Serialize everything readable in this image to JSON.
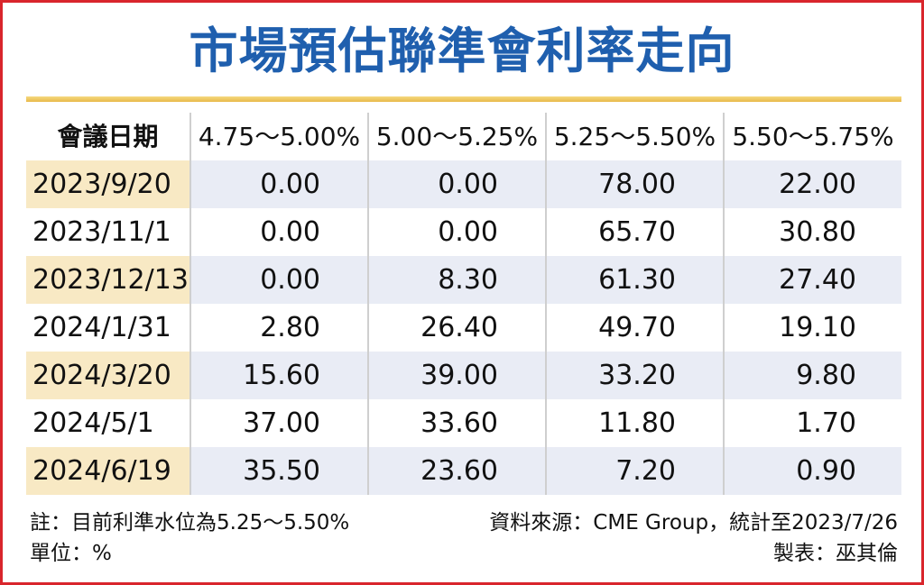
{
  "title": "市場預估聯準會利率走向",
  "table": {
    "columns": [
      "會議日期",
      "4.75～5.00%",
      "5.00～5.25%",
      "5.25～5.50%",
      "5.50～5.75%"
    ],
    "rows": [
      [
        "2023/9/20",
        "0.00",
        "0.00",
        "78.00",
        "22.00"
      ],
      [
        "2023/11/1",
        "0.00",
        "0.00",
        "65.70",
        "30.80"
      ],
      [
        "2023/12/13",
        "0.00",
        "8.30",
        "61.30",
        "27.40"
      ],
      [
        "2024/1/31",
        "2.80",
        "26.40",
        "49.70",
        "19.10"
      ],
      [
        "2024/3/20",
        "15.60",
        "39.00",
        "33.20",
        "9.80"
      ],
      [
        "2024/5/1",
        "37.00",
        "33.60",
        "11.80",
        "1.70"
      ],
      [
        "2024/6/19",
        "35.50",
        "23.60",
        "7.20",
        "0.90"
      ]
    ]
  },
  "notes": {
    "note": "註：目前利準水位為5.25～5.50%",
    "source": "資料來源：CME Group，統計至2023/7/26",
    "unit": "單位：%",
    "author": "製表：巫其倫"
  },
  "colors": {
    "title": "#1f5fae",
    "frame": "#d9262c",
    "stripe": "#e9ecf5",
    "date_stripe": "#f8e9c4",
    "rule": "#e8b94a"
  }
}
